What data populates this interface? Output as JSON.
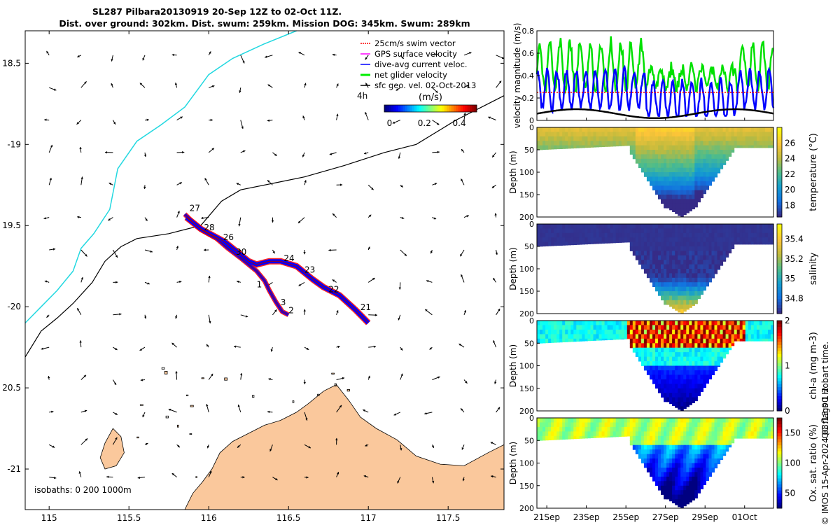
{
  "title": {
    "line1": "SL287 Pilbara20130919 20-Sep 12Z to 02-Oct 11Z.",
    "line2": "Dist. over ground: 302km. Dist. swum: 259km. Mission DOG: 345km. Swum: 289km"
  },
  "map": {
    "lon_ticks": [
      "115",
      "115.5",
      "116",
      "116.5",
      "117",
      "117.5"
    ],
    "lat_ticks": [
      "18.5",
      "-19",
      "19.5",
      "-20",
      "20.5",
      "-21"
    ],
    "lon_values": [
      115,
      115.5,
      116,
      116.5,
      117,
      117.5
    ],
    "lat_values": [
      -18.5,
      -19,
      -19.5,
      -20,
      -20.5,
      -21
    ],
    "lon_range": [
      114.85,
      117.85
    ],
    "lat_range": [
      -21.25,
      -18.3
    ],
    "legend": [
      {
        "label": "25cm/s swim vector",
        "color": "#ff0000"
      },
      {
        "label": "GPS surface velocity",
        "color": "#ff00ff"
      },
      {
        "label": "dive-avg current veloc.",
        "color": "#0000ff"
      },
      {
        "label": "net glider velocity",
        "color": "#00ee00"
      },
      {
        "label": "sfc geo. vel. 02-Oct-2013",
        "color": "#000000"
      }
    ],
    "colorbar": {
      "unit": "(m/s)",
      "ticks": [
        "0",
        "0.2",
        "0.4"
      ],
      "tick_values": [
        0,
        0.2,
        0.4
      ],
      "range": [
        -0.03,
        0.5
      ]
    },
    "scale_label": "4h",
    "isobaths_label": "isobaths: 0   200  1000m",
    "day_labels": [
      {
        "text": "27",
        "lon": 115.88,
        "lat": -19.41
      },
      {
        "text": "28",
        "lon": 115.97,
        "lat": -19.53
      },
      {
        "text": "26",
        "lon": 116.09,
        "lat": -19.59
      },
      {
        "text": "30",
        "lon": 116.17,
        "lat": -19.68
      },
      {
        "text": "24",
        "lon": 116.47,
        "lat": -19.72
      },
      {
        "text": "23",
        "lon": 116.6,
        "lat": -19.79
      },
      {
        "text": "22",
        "lon": 116.75,
        "lat": -19.91
      },
      {
        "text": "21",
        "lon": 116.95,
        "lat": -20.02
      },
      {
        "text": "1",
        "lon": 116.3,
        "lat": -19.88
      },
      {
        "text": "3",
        "lon": 116.45,
        "lat": -19.99
      },
      {
        "text": "2",
        "lon": 116.5,
        "lat": -20.04
      }
    ]
  },
  "chart_data": [
    {
      "type": "line",
      "ylabel": "velocity magnitude (m/s)",
      "ylim": [
        0,
        0.8
      ],
      "yticks": [
        "0",
        "0.2",
        "0.4",
        "0.6",
        "0.8"
      ],
      "series": [
        {
          "color": "#00e000",
          "approx_range": [
            0.25,
            0.75
          ]
        },
        {
          "color": "#0000ff",
          "approx_range": [
            0.05,
            0.5
          ]
        },
        {
          "color": "#000000",
          "approx_range": [
            0.0,
            0.12
          ]
        },
        {
          "color": "#ff0000",
          "constant": 0.25
        }
      ]
    },
    {
      "type": "heatmap",
      "ylabel": "Depth (m)",
      "cbar_label": "temperature (°C)",
      "cbar_ticks": [
        "18",
        "20",
        "22",
        "24",
        "26"
      ],
      "cbar_range": [
        16.5,
        28
      ],
      "yticks": [
        "0",
        "50",
        "100",
        "150",
        "200"
      ],
      "ylim": [
        200,
        0
      ]
    },
    {
      "type": "heatmap",
      "ylabel": "Depth (m)",
      "cbar_label": "salinity",
      "cbar_ticks": [
        "34.8",
        "35",
        "35.2",
        "35.4"
      ],
      "cbar_range": [
        34.65,
        35.55
      ],
      "yticks": [
        "0",
        "50",
        "100",
        "150",
        "200"
      ],
      "ylim": [
        200,
        0
      ]
    },
    {
      "type": "heatmap",
      "ylabel": "Depth (m)",
      "cbar_label": "chl-a (mg m-3)",
      "cbar_ticks": [
        "0",
        "1",
        "2"
      ],
      "cbar_range": [
        0,
        2
      ],
      "yticks": [
        "0",
        "50",
        "100",
        "150",
        "200"
      ],
      "ylim": [
        200,
        0
      ]
    },
    {
      "type": "heatmap",
      "ylabel": "Depth (m)",
      "cbar_label": "Ox. sat. ratio (%)",
      "cbar_ticks": [
        "50",
        "100",
        "150"
      ],
      "cbar_range": [
        25,
        175
      ],
      "yticks": [
        "0",
        "50",
        "100",
        "150",
        "200"
      ],
      "ylim": [
        200,
        0
      ],
      "xticks": [
        "21Sep",
        "23Sep",
        "25Sep",
        "27Sep",
        "29Sep",
        "01Oct"
      ]
    }
  ],
  "time_axis": {
    "start_day": 20.5,
    "end_day": 32.46,
    "tick_days": [
      21,
      23,
      25,
      27,
      29,
      31
    ]
  },
  "side_text": {
    "qc": "QC flags 1  2",
    "credit": "© IMOS 15-Apr-2024 08:13:00 Hobart time."
  }
}
